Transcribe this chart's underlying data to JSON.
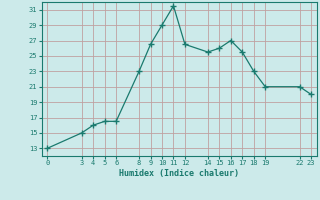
{
  "x": [
    0,
    3,
    4,
    5,
    6,
    8,
    9,
    10,
    11,
    12,
    14,
    15,
    16,
    17,
    18,
    19,
    22,
    23
  ],
  "y": [
    13,
    15,
    16,
    16.5,
    16.5,
    23,
    26.5,
    29,
    31.5,
    26.5,
    25.5,
    26,
    27,
    25.5,
    23,
    21,
    21,
    20
  ],
  "xticks": [
    0,
    3,
    4,
    5,
    6,
    8,
    9,
    10,
    11,
    12,
    14,
    15,
    16,
    17,
    18,
    19,
    22,
    23
  ],
  "yticks": [
    13,
    15,
    17,
    19,
    21,
    23,
    25,
    27,
    29,
    31
  ],
  "xlabel": "Humidex (Indice chaleur)",
  "xlim": [
    -0.5,
    23.5
  ],
  "ylim": [
    12,
    32
  ],
  "line_color": "#1a7a6e",
  "bg_color": "#cceaea",
  "grid_color": "#c0a0a0"
}
